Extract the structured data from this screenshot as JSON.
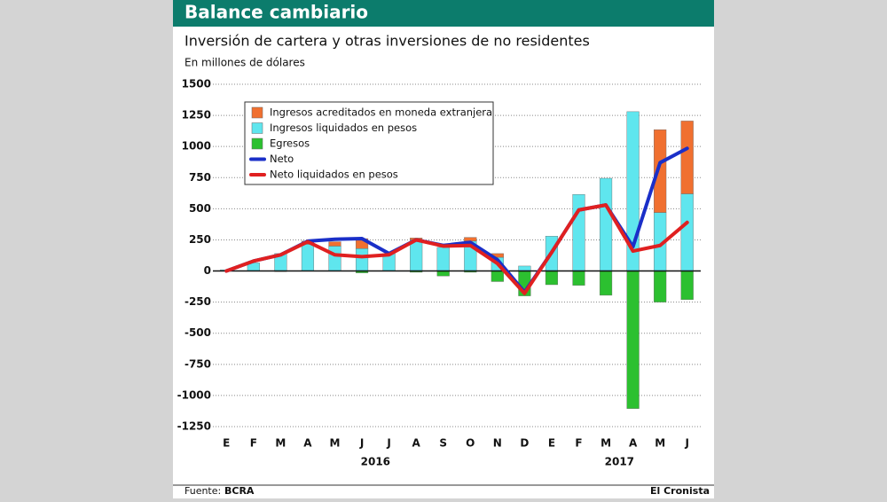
{
  "header": {
    "title": "Balance cambiario"
  },
  "chart_data": {
    "type": "bar-line",
    "title": "Inversión de cartera y otras inversiones de no residentes",
    "subtitle": "En millones de dólares",
    "categories": [
      "E",
      "F",
      "M",
      "A",
      "M",
      "J",
      "J",
      "A",
      "S",
      "O",
      "N",
      "D",
      "E",
      "F",
      "M",
      "A",
      "M",
      "J"
    ],
    "x_group_labels": [
      "2016",
      "2017"
    ],
    "ylim": [
      -1250,
      1500
    ],
    "yticks": [
      1500,
      1250,
      1000,
      750,
      500,
      250,
      0,
      -250,
      -500,
      -750,
      -1000,
      -1250
    ],
    "grid": true,
    "series": [
      {
        "name": "Ingresos acreditados en moneda extranjera",
        "kind": "bar",
        "color": "#f07030",
        "values": [
          0,
          0,
          0,
          25,
          35,
          80,
          0,
          15,
          0,
          30,
          30,
          0,
          0,
          0,
          0,
          0,
          665,
          585
        ]
      },
      {
        "name": "Ingresos liquidados en pesos",
        "kind": "bar",
        "color": "#5fe6ee",
        "values": [
          10,
          65,
          140,
          215,
          200,
          180,
          140,
          250,
          190,
          240,
          110,
          40,
          280,
          615,
          745,
          1280,
          470,
          620
        ]
      },
      {
        "name": "Egresos",
        "kind": "bar",
        "color": "#2cc030",
        "values": [
          0,
          0,
          -5,
          0,
          0,
          -15,
          0,
          -10,
          -40,
          -10,
          -85,
          -200,
          -110,
          -115,
          -195,
          -1105,
          -250,
          -230
        ]
      },
      {
        "name": "Neto",
        "kind": "line",
        "color": "#1a2fc8",
        "values": [
          0,
          80,
          130,
          240,
          255,
          260,
          140,
          250,
          205,
          230,
          90,
          -170,
          150,
          490,
          530,
          195,
          870,
          985
        ]
      },
      {
        "name": "Neto liquidados en pesos",
        "kind": "line",
        "color": "#e02020",
        "values": [
          0,
          80,
          130,
          235,
          130,
          115,
          130,
          250,
          200,
          205,
          60,
          -180,
          150,
          490,
          530,
          160,
          205,
          390
        ]
      }
    ]
  },
  "footer": {
    "source_label": "Fuente:",
    "source": "BCRA",
    "publisher": "El Cronista"
  }
}
